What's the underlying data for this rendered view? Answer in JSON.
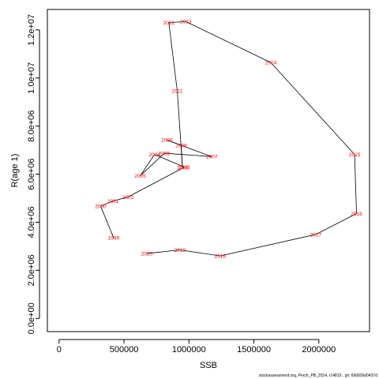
{
  "chart_data": {
    "type": "scatter",
    "title": "",
    "xlabel": "SSB",
    "ylabel": "R(age 1)",
    "xlim": [
      -90000,
      2390000
    ],
    "ylim": [
      -550000,
      12850000
    ],
    "x_ticks": [
      0,
      500000,
      1000000,
      1500000,
      2000000
    ],
    "x_tick_labels": [
      "0",
      "500000",
      "1000000",
      "1500000",
      "2000000"
    ],
    "y_ticks": [
      0,
      2000000,
      4000000,
      6000000,
      8000000,
      10000000,
      12000000
    ],
    "y_tick_labels": [
      "0.0e+00",
      "2.0e+06",
      "4.0e+06",
      "6.0e+06",
      "8.0e+06",
      "1.0e+07",
      "1.2e+07"
    ],
    "grid": false,
    "legend": "none",
    "line_color": "#000000",
    "label_color": "#ff0000",
    "footnote": "stockassessment.org, Perch_PB_2014, r14819 , git: 69d926d0437d",
    "points": [
      {
        "label": "1999",
        "x": 420000,
        "y": 3350000
      },
      {
        "label": "2000",
        "x": 320000,
        "y": 4670000
      },
      {
        "label": "2001",
        "x": 415000,
        "y": 4880000
      },
      {
        "label": "2002",
        "x": 530000,
        "y": 5050000
      },
      {
        "label": "2003",
        "x": 965000,
        "y": 6290000
      },
      {
        "label": "2004",
        "x": 735000,
        "y": 6820000
      },
      {
        "label": "2005",
        "x": 625000,
        "y": 5930000
      },
      {
        "label": "2006",
        "x": 810000,
        "y": 6870000
      },
      {
        "label": "2007",
        "x": 1175000,
        "y": 6730000
      },
      {
        "label": "2008",
        "x": 830000,
        "y": 7420000
      },
      {
        "label": "2009",
        "x": 940000,
        "y": 7200000
      },
      {
        "label": "2010",
        "x": 950000,
        "y": 6280000
      },
      {
        "label": "2011",
        "x": 910000,
        "y": 9460000
      },
      {
        "label": "2012",
        "x": 845000,
        "y": 12300000
      },
      {
        "label": "2013",
        "x": 975000,
        "y": 12350000
      },
      {
        "label": "2014",
        "x": 1630000,
        "y": 10640000
      },
      {
        "label": "2015",
        "x": 2275000,
        "y": 6820000
      },
      {
        "label": "2016",
        "x": 2290000,
        "y": 4360000
      },
      {
        "label": "2017",
        "x": 1975000,
        "y": 3490000
      },
      {
        "label": "2018",
        "x": 1240000,
        "y": 2600000
      },
      {
        "label": "2019",
        "x": 930000,
        "y": 2850000
      },
      {
        "label": "2020",
        "x": 675000,
        "y": 2700000
      }
    ]
  }
}
